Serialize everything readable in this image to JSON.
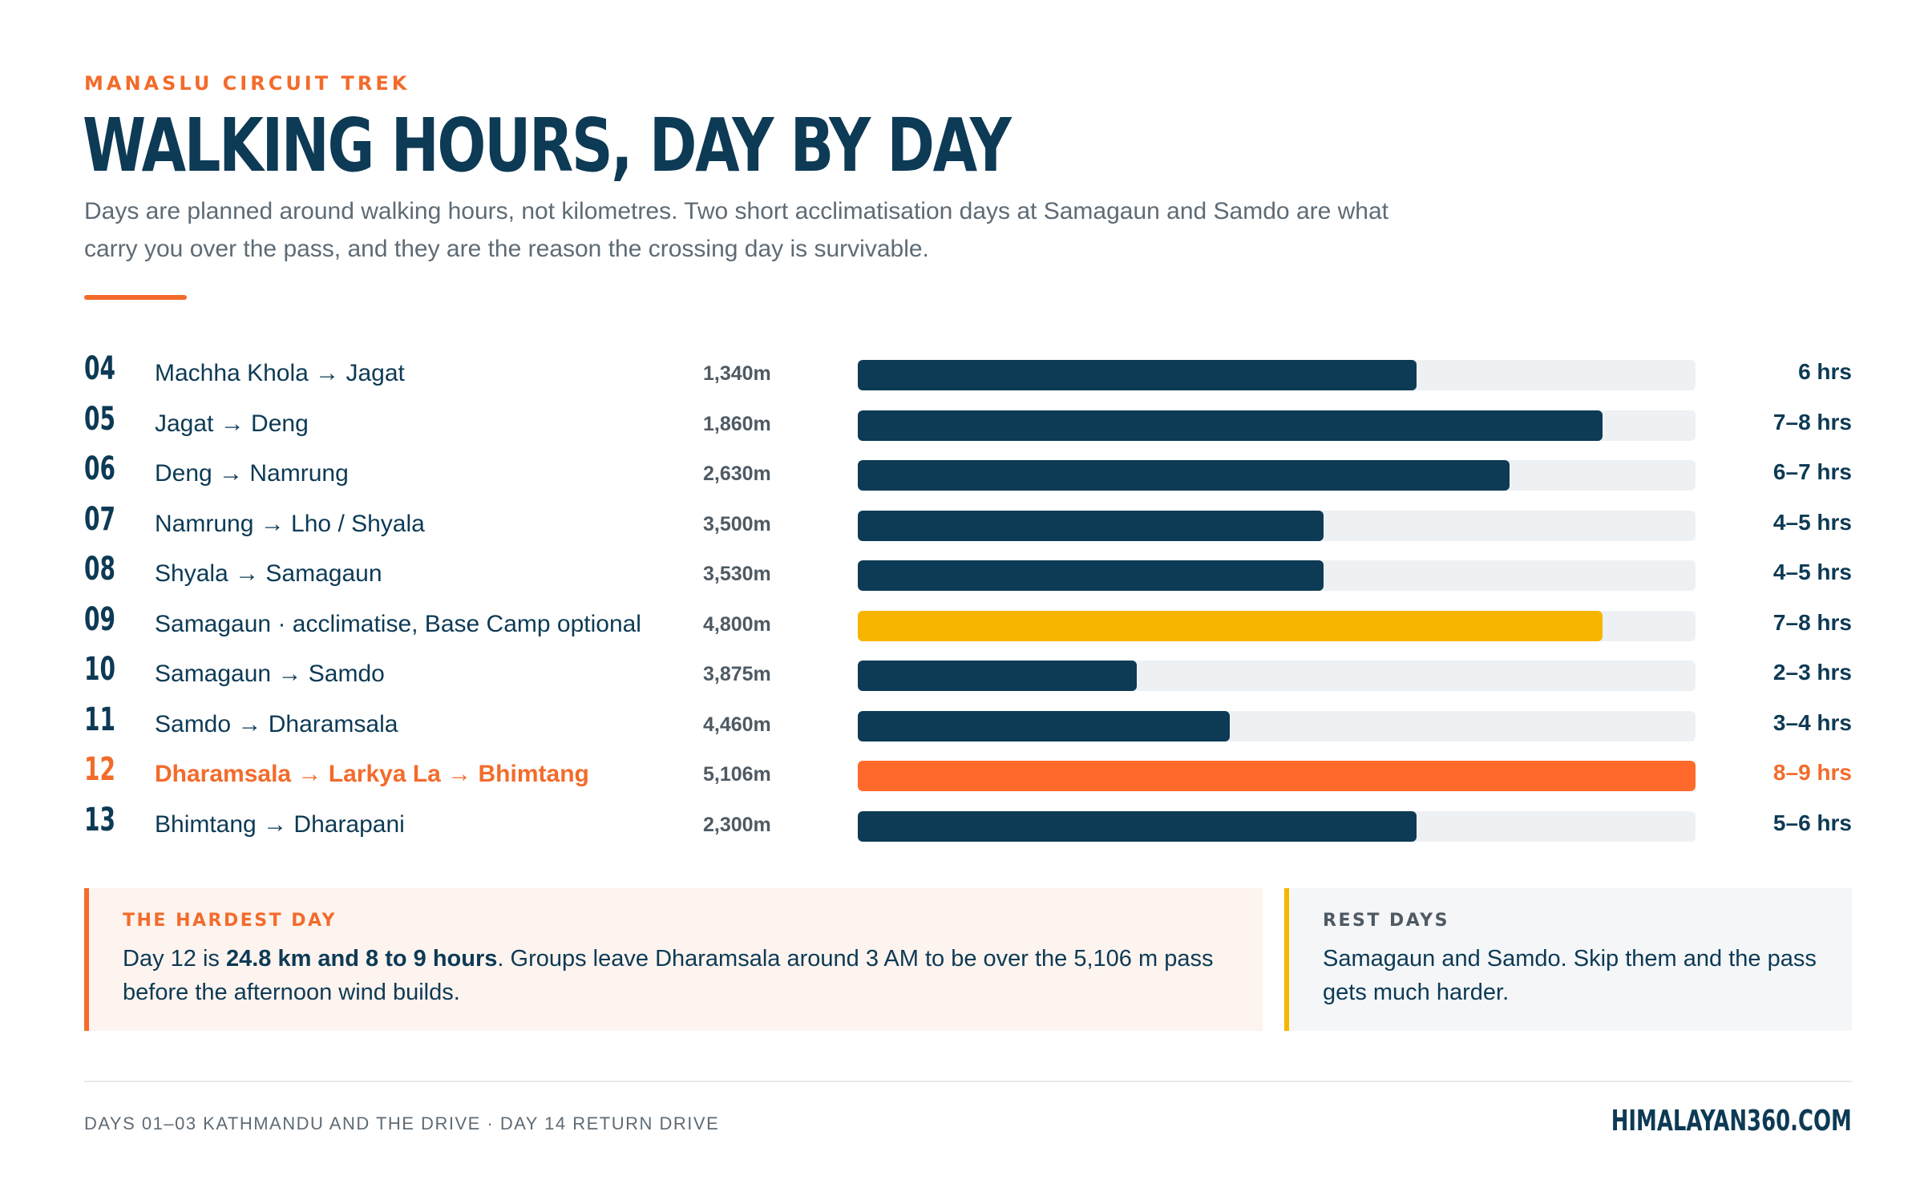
{
  "header": {
    "eyebrow": "MANASLU CIRCUIT TREK",
    "title": "WALKING HOURS, DAY BY DAY",
    "intro": "Days are planned around walking hours, not kilometres. Two short acclimatisation days at Samagaun and Samdo are what carry you over the pass, and they are the reason the crossing day is survivable."
  },
  "colors": {
    "walk": "#0d3a55",
    "acclimatise": "#f7b500",
    "pass": "#ff6a2b",
    "track": "#eef1f4",
    "accent": "#f36b2b"
  },
  "chart_data": {
    "type": "bar",
    "orientation": "horizontal",
    "max_hours": 9,
    "rows": [
      {
        "day": "04",
        "route": "Machha Khola → Jagat",
        "altitude": "1,340m",
        "hours_label": "6 hrs",
        "hours": 6,
        "kind": "walk"
      },
      {
        "day": "05",
        "route": "Jagat → Deng",
        "altitude": "1,860m",
        "hours_label": "7–8 hrs",
        "hours": 8,
        "kind": "walk"
      },
      {
        "day": "06",
        "route": "Deng → Namrung",
        "altitude": "2,630m",
        "hours_label": "6–7 hrs",
        "hours": 7,
        "kind": "walk"
      },
      {
        "day": "07",
        "route": "Namrung → Lho / Shyala",
        "altitude": "3,500m",
        "hours_label": "4–5 hrs",
        "hours": 5,
        "kind": "walk"
      },
      {
        "day": "08",
        "route": "Shyala → Samagaun",
        "altitude": "3,530m",
        "hours_label": "4–5 hrs",
        "hours": 5,
        "kind": "walk"
      },
      {
        "day": "09",
        "route": "Samagaun · acclimatise, Base Camp optional",
        "altitude": "4,800m",
        "hours_label": "7–8 hrs",
        "hours": 8,
        "kind": "acclimatise"
      },
      {
        "day": "10",
        "route": "Samagaun → Samdo",
        "altitude": "3,875m",
        "hours_label": "2–3 hrs",
        "hours": 3,
        "kind": "walk"
      },
      {
        "day": "11",
        "route": "Samdo → Dharamsala",
        "altitude": "4,460m",
        "hours_label": "3–4 hrs",
        "hours": 4,
        "kind": "walk"
      },
      {
        "day": "12",
        "route": "Dharamsala → Larkya La → Bhimtang",
        "altitude": "5,106m",
        "hours_label": "8–9 hrs",
        "hours": 9,
        "kind": "pass"
      },
      {
        "day": "13",
        "route": "Bhimtang → Dharapani",
        "altitude": "2,300m",
        "hours_label": "5–6 hrs",
        "hours": 6,
        "kind": "walk"
      }
    ]
  },
  "hardest": {
    "label": "THE HARDEST DAY",
    "text_a": "Day 12 is ",
    "text_bold": "24.8 km and 8 to 9 hours",
    "text_b": ". Groups leave Dharamsala around 3 AM to be over the 5,106 m pass before the afternoon wind builds."
  },
  "rest": {
    "label": "REST DAYS",
    "text": "Samagaun and Samdo. Skip them and the pass gets much harder."
  },
  "footer": {
    "note": "DAYS 01–03 KATHMANDU AND THE DRIVE · DAY 14 RETURN DRIVE",
    "brand": "HIMALAYAN360.COM"
  }
}
